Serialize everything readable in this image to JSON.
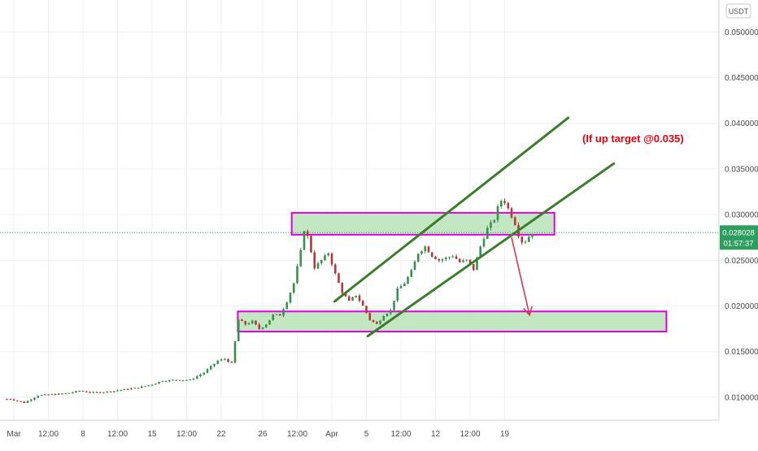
{
  "currency_label": "USDT",
  "annotation": {
    "text": "(If up target @0.035)",
    "color": "#e8000b"
  },
  "price_tag": {
    "price": "0.028028",
    "countdown": "01:57:37",
    "color": "#2e9e5f"
  },
  "colors": {
    "up_candle": "#3a8f4d",
    "down_candle": "#b03a3a",
    "zone_fill": "#b7e3b7",
    "zone_border": "#e000e0",
    "channel": "#3b7d2b",
    "arrow": "#d1384d",
    "current_price_line": "#2e9e5f"
  },
  "chart_data": {
    "type": "candlestick",
    "title": "",
    "x_tick_labels": [
      "Mar",
      "12:00",
      "8",
      "12:00",
      "15",
      "12:00",
      "22",
      "26",
      "12:00",
      "Apr",
      "5",
      "12:00",
      "12",
      "12:00",
      "19"
    ],
    "y_tick_labels": [
      "0.050000",
      "0.045000",
      "0.040000",
      "0.035000",
      "0.030000",
      "0.025000",
      "0.020000",
      "0.015000",
      "0.010000"
    ],
    "ylim": [
      0.0075,
      0.0535
    ],
    "x_range_days": [
      -1.0,
      51.0
    ],
    "current_price": 0.028028,
    "zones": [
      {
        "name": "resistance-zone",
        "x_start_day": 20.1,
        "x_end_day": 39.1,
        "y_low": 0.0278,
        "y_high": 0.0302
      },
      {
        "name": "support-zone",
        "x_start_day": 16.2,
        "x_end_day": 47.2,
        "y_low": 0.0172,
        "y_high": 0.0194
      }
    ],
    "channel_lines": [
      {
        "name": "channel-upper-line",
        "x1_day": 23.2,
        "y1": 0.0205,
        "x2_day": 40.1,
        "y2": 0.0406
      },
      {
        "name": "channel-lower-line",
        "x1_day": 25.6,
        "y1": 0.0167,
        "x2_day": 43.4,
        "y2": 0.0356
      }
    ],
    "arrow": {
      "x1_day": 36.0,
      "y1": 0.0275,
      "x2_day": 37.3,
      "y2": 0.019
    },
    "candle_keypoints": [
      [
        0,
        0.0098
      ],
      [
        1,
        0.0094
      ],
      [
        2,
        0.0102
      ],
      [
        3,
        0.0103
      ],
      [
        4,
        0.0104
      ],
      [
        5,
        0.0107
      ],
      [
        6,
        0.0105
      ],
      [
        7,
        0.0106
      ],
      [
        8,
        0.0108
      ],
      [
        9,
        0.011
      ],
      [
        10,
        0.0113
      ],
      [
        11,
        0.0118
      ],
      [
        12,
        0.0119
      ],
      [
        13,
        0.0119
      ],
      [
        14,
        0.0127
      ],
      [
        15,
        0.014
      ],
      [
        15.5,
        0.0142
      ],
      [
        16,
        0.0137
      ],
      [
        16.5,
        0.0185
      ],
      [
        17,
        0.018
      ],
      [
        17.5,
        0.0183
      ],
      [
        18,
        0.0175
      ],
      [
        18.5,
        0.018
      ],
      [
        19,
        0.019
      ],
      [
        19.5,
        0.019
      ],
      [
        20,
        0.0205
      ],
      [
        20.5,
        0.0225
      ],
      [
        21,
        0.026
      ],
      [
        21.3,
        0.0288
      ],
      [
        21.6,
        0.027
      ],
      [
        22,
        0.0242
      ],
      [
        22.5,
        0.025
      ],
      [
        23,
        0.0258
      ],
      [
        23.5,
        0.0235
      ],
      [
        24,
        0.0215
      ],
      [
        24.5,
        0.0205
      ],
      [
        25,
        0.0212
      ],
      [
        25.5,
        0.02
      ],
      [
        26,
        0.0185
      ],
      [
        26.5,
        0.018
      ],
      [
        27,
        0.019
      ],
      [
        27.5,
        0.0195
      ],
      [
        28,
        0.0218
      ],
      [
        28.5,
        0.0225
      ],
      [
        29,
        0.0238
      ],
      [
        29.5,
        0.0258
      ],
      [
        30,
        0.0265
      ],
      [
        30.5,
        0.0255
      ],
      [
        31,
        0.025
      ],
      [
        32,
        0.0255
      ],
      [
        32.5,
        0.0248
      ],
      [
        33,
        0.025
      ],
      [
        33.5,
        0.024
      ],
      [
        34,
        0.0265
      ],
      [
        34.5,
        0.0285
      ],
      [
        35,
        0.0295
      ],
      [
        35.3,
        0.031
      ],
      [
        35.6,
        0.0318
      ],
      [
        35.9,
        0.031
      ],
      [
        36.2,
        0.03
      ],
      [
        36.5,
        0.029
      ],
      [
        36.8,
        0.0275
      ],
      [
        37.1,
        0.0268
      ],
      [
        37.4,
        0.0274
      ],
      [
        37.7,
        0.028
      ]
    ]
  }
}
